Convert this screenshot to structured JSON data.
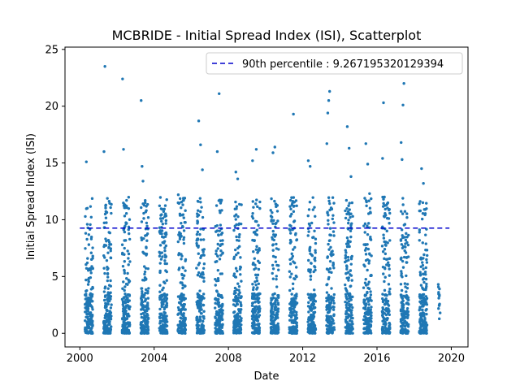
{
  "chart_data": {
    "type": "scatter",
    "title": "MCBRIDE - Initial Spread Index (ISI), Scatterplot",
    "xlabel": "Date",
    "ylabel": "Initial Spread Index (ISI)",
    "xlim": [
      1999.2,
      2020.9
    ],
    "ylim": [
      -1.2,
      25.2
    ],
    "xticks": [
      2000,
      2004,
      2008,
      2012,
      2016,
      2020
    ],
    "yticks": [
      0,
      5,
      10,
      15,
      20,
      25
    ],
    "grid": false,
    "legend_position": "top-right",
    "point_color": "#1f77b4",
    "series": [
      {
        "name": "ISI",
        "x": [
          2000.35,
          2000.4,
          2000.45,
          2000.5,
          2001.3,
          2001.35,
          2001.4,
          2001.45,
          2002.3,
          2002.35,
          2002.4,
          2003.3,
          2003.35,
          2003.4,
          2004.3,
          2004.5,
          2005.3,
          2005.5,
          2006.4,
          2006.5,
          2006.6,
          2007.4,
          2007.5,
          2007.6,
          2008.4,
          2008.5,
          2008.6,
          2009.3,
          2009.5,
          2010.4,
          2010.5,
          2011.4,
          2011.5,
          2012.3,
          2012.4,
          2013.3,
          2013.35,
          2013.4,
          2013.45,
          2014.4,
          2014.5,
          2014.6,
          2015.4,
          2015.5,
          2015.6,
          2016.3,
          2016.35,
          2016.4,
          2017.3,
          2017.35,
          2017.4,
          2017.45,
          2018.4,
          2018.5,
          2018.6,
          2019.3,
          2019.4
        ],
        "y": [
          15.1,
          9.6,
          4.3,
          0.5,
          16.0,
          23.5,
          11.3,
          2.0,
          22.4,
          16.2,
          5.5,
          20.5,
          14.7,
          13.4,
          9.3,
          4.0,
          12.2,
          6.8,
          18.7,
          16.6,
          14.4,
          16.0,
          21.1,
          11.6,
          14.2,
          13.6,
          8.7,
          15.2,
          16.2,
          15.9,
          16.4,
          10.5,
          19.3,
          15.2,
          14.7,
          16.7,
          19.4,
          20.5,
          21.3,
          18.2,
          16.3,
          13.8,
          16.7,
          14.9,
          12.3,
          15.4,
          20.3,
          12.0,
          16.8,
          15.3,
          20.1,
          22.0,
          14.5,
          13.2,
          10.9,
          4.3,
          1.8
        ]
      }
    ],
    "legend": [
      {
        "label": "90th percentile : 9.267195320129394",
        "style": "dashed",
        "color": "#0000cc",
        "y": 9.267195320129394
      }
    ]
  }
}
